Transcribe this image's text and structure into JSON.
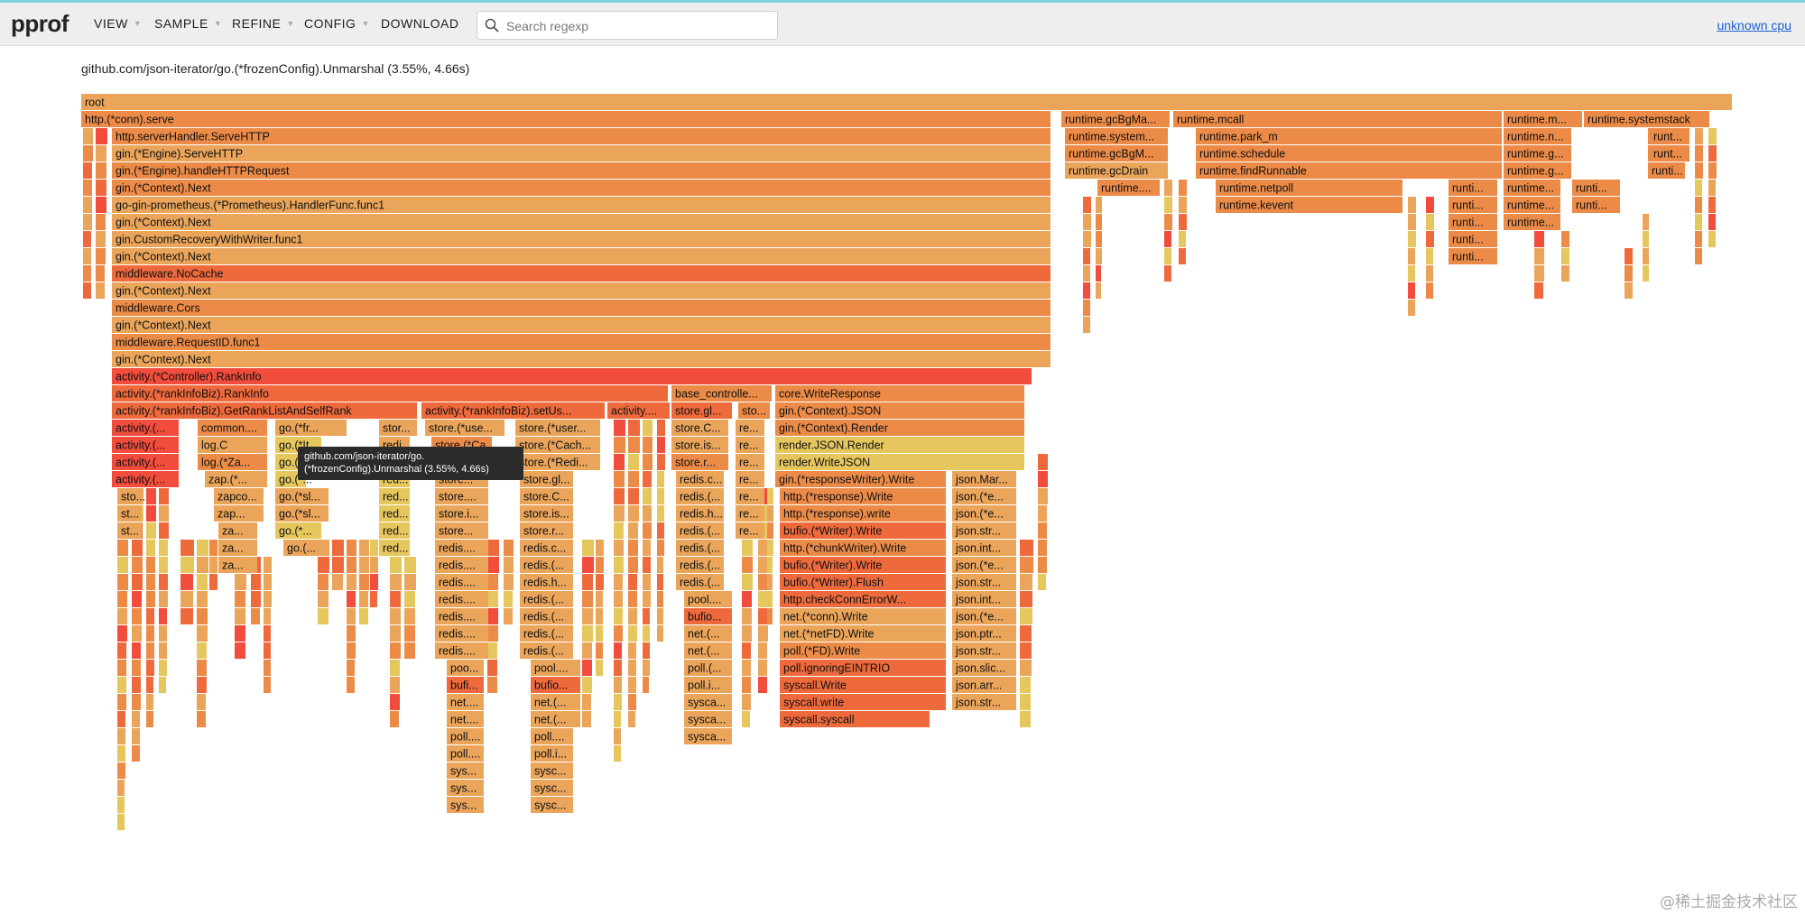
{
  "app": {
    "logo": "pprof"
  },
  "menu": [
    {
      "label": "VIEW",
      "caret": true
    },
    {
      "label": "SAMPLE",
      "caret": true
    },
    {
      "label": "REFINE",
      "caret": true
    },
    {
      "label": "CONFIG",
      "caret": true
    },
    {
      "label": "DOWNLOAD",
      "caret": false
    }
  ],
  "search": {
    "placeholder": "Search regexp",
    "value": ""
  },
  "profile_link": "unknown cpu",
  "selection_detail": "github.com/json-iterator/go.(*frozenConfig).Unmarshal (3.55%, 4.66s)",
  "tooltip": {
    "line1": "github.com/json-iterator/go.",
    "line2": "(*frozenConfig).Unmarshal (3.55%, 4.66s)"
  },
  "flame": {
    "frames": [
      [
        "root",
        0
      ],
      [
        "http.(*conn).serve",
        1
      ],
      [
        "runtime.gcBgMa...",
        1
      ],
      [
        "runtime.mcall",
        1
      ],
      [
        "runtime.m...",
        1
      ],
      [
        "runtime.systemstack",
        1
      ],
      [
        "http.serverHandler.ServeHTTP",
        2
      ],
      [
        "runtime.system...",
        2
      ],
      [
        "runtime.park_m",
        2
      ],
      [
        "runtime.n...",
        2
      ],
      [
        "runti...",
        2
      ],
      [
        "runt...",
        2
      ],
      [
        "gin.(*Engine).ServeHTTP",
        3
      ],
      [
        "runtime.gcBgM...",
        3
      ],
      [
        "runtime.schedule",
        3
      ],
      [
        "runtime.g...",
        3
      ],
      [
        "runti...",
        3
      ],
      [
        "runt...",
        3
      ],
      [
        "gin.(*Engine).handleHTTPRequest",
        4
      ],
      [
        "runtime.gcDrain",
        4
      ],
      [
        "runtime.findRunnable",
        4
      ],
      [
        "runtime.g...",
        4
      ],
      [
        "runti...",
        4
      ],
      [
        "gin.(*Context).Next",
        5
      ],
      [
        "runtime....",
        5
      ],
      [
        "runtime.netpoll",
        5
      ],
      [
        "runti...",
        5
      ],
      [
        "runtime...",
        5
      ],
      [
        "runti...",
        5
      ],
      [
        "go-gin-prometheus.(*Prometheus).HandlerFunc.func1",
        6
      ],
      [
        "runtime.kevent",
        6
      ],
      [
        "runti...",
        6
      ],
      [
        "runtime...",
        6
      ],
      [
        "runti...",
        6
      ],
      [
        "gin.(*Context).Next",
        7
      ],
      [
        "runti...",
        7
      ],
      [
        "runtime...",
        7
      ],
      [
        "gin.CustomRecoveryWithWriter.func1",
        8
      ],
      [
        "runti...",
        8
      ],
      [
        "gin.(*Context).Next",
        9
      ],
      [
        "runti...",
        9
      ],
      [
        "middleware.NoCache",
        10
      ],
      [
        "gin.(*Context).Next",
        11
      ],
      [
        "middleware.Cors",
        12
      ],
      [
        "gin.(*Context).Next",
        13
      ],
      [
        "middleware.RequestID.func1",
        14
      ],
      [
        "gin.(*Context).Next",
        15
      ],
      [
        "activity.(*Controller).RankInfo",
        16
      ],
      [
        "activity.(*rankInfoBiz).RankInfo",
        17
      ],
      [
        "base_controlle...",
        17
      ],
      [
        "core.WriteResponse",
        17
      ],
      [
        "activity.(*rankInfoBiz).GetRankListAndSelfRank",
        18
      ],
      [
        "activity.(*rankInfoBiz).setUs...",
        18
      ],
      [
        "activity....",
        18
      ],
      [
        "store.gl...",
        18
      ],
      [
        "sto...",
        18
      ],
      [
        "gin.(*Context).JSON",
        18
      ],
      [
        "activity.(...",
        19
      ],
      [
        "common....",
        19
      ],
      [
        "go.(*fr...",
        19
      ],
      [
        "stor...",
        19
      ],
      [
        "store.(*use...",
        19
      ],
      [
        "store.(*user...",
        19
      ],
      [
        "store.C...",
        19
      ],
      [
        "re...",
        19
      ],
      [
        "gin.(*Context).Render",
        19
      ],
      [
        "activity.(...",
        20
      ],
      [
        "log.C",
        20
      ],
      [
        "go.(*It...",
        20
      ],
      [
        "redi...",
        20
      ],
      [
        "store.(*Ca...",
        20
      ],
      [
        "store.(*Cach...",
        20
      ],
      [
        "store.is...",
        20
      ],
      [
        "re...",
        20
      ],
      [
        "render.JSON.Render",
        20
      ],
      [
        "activity.(...",
        21
      ],
      [
        "log.(*Za...",
        21
      ],
      [
        "go.(*...",
        21
      ],
      [
        "red...",
        21
      ],
      [
        "store.(*...",
        21
      ],
      [
        "store.(*Redi...",
        21
      ],
      [
        "store.r...",
        21
      ],
      [
        "re...",
        21
      ],
      [
        "render.WriteJSON",
        21
      ],
      [
        "activity.(...",
        22
      ],
      [
        "zap.(*...",
        22
      ],
      [
        "go.(*...",
        22
      ],
      [
        "red...",
        22
      ],
      [
        "store...",
        22
      ],
      [
        "store.gl...",
        22
      ],
      [
        "redis.c...",
        22
      ],
      [
        "re...",
        22
      ],
      [
        "gin.(*responseWriter).Write",
        22
      ],
      [
        "json.Mar...",
        22
      ],
      [
        "sto...",
        23
      ],
      [
        "zapco...",
        23
      ],
      [
        "go.(*sl...",
        23
      ],
      [
        "red...",
        23
      ],
      [
        "store....",
        23
      ],
      [
        "store.C...",
        23
      ],
      [
        "redis.(...",
        23
      ],
      [
        "re...",
        23
      ],
      [
        "http.(*response).Write",
        23
      ],
      [
        "json.(*e...",
        23
      ],
      [
        "st...",
        24
      ],
      [
        "zap...",
        24
      ],
      [
        "go.(*sl...",
        24
      ],
      [
        "red...",
        24
      ],
      [
        "store.i...",
        24
      ],
      [
        "store.is...",
        24
      ],
      [
        "redis.h...",
        24
      ],
      [
        "re...",
        24
      ],
      [
        "http.(*response).write",
        24
      ],
      [
        "json.(*e...",
        24
      ],
      [
        "st...",
        25
      ],
      [
        "za...",
        25
      ],
      [
        "go.(*...",
        25
      ],
      [
        "red...",
        25
      ],
      [
        "store...",
        25
      ],
      [
        "store.r...",
        25
      ],
      [
        "redis.(...",
        25
      ],
      [
        "re...",
        25
      ],
      [
        "bufio.(*Writer).Write",
        25
      ],
      [
        "json.str...",
        25
      ],
      [
        "za...",
        26
      ],
      [
        "go.(...",
        26
      ],
      [
        "red...",
        26
      ],
      [
        "redis....",
        26
      ],
      [
        "redis.c...",
        26
      ],
      [
        "redis.(...",
        26
      ],
      [
        "http.(*chunkWriter).Write",
        26
      ],
      [
        "json.int...",
        26
      ],
      [
        "za...",
        27
      ],
      [
        "redis....",
        27
      ],
      [
        "redis.(...",
        27
      ],
      [
        "redis.(...",
        27
      ],
      [
        "bufio.(*Writer).Write",
        27
      ],
      [
        "json.(*e...",
        27
      ],
      [
        "redis....",
        28
      ],
      [
        "redis.h...",
        28
      ],
      [
        "redis.(...",
        28
      ],
      [
        "bufio.(*Writer).Flush",
        28
      ],
      [
        "json.str...",
        28
      ],
      [
        "redis....",
        29
      ],
      [
        "redis.(...",
        29
      ],
      [
        "pool....",
        29
      ],
      [
        "http.checkConnErrorW...",
        29
      ],
      [
        "json.int...",
        29
      ],
      [
        "redis....",
        30
      ],
      [
        "redis.(...",
        30
      ],
      [
        "bufio...",
        30
      ],
      [
        "net.(*conn).Write",
        30
      ],
      [
        "json.(*e...",
        30
      ],
      [
        "redis....",
        31
      ],
      [
        "redis.(...",
        31
      ],
      [
        "net.(...",
        31
      ],
      [
        "net.(*netFD).Write",
        31
      ],
      [
        "json.ptr...",
        31
      ],
      [
        "redis....",
        32
      ],
      [
        "redis.(...",
        32
      ],
      [
        "net.(...",
        32
      ],
      [
        "poll.(*FD).Write",
        32
      ],
      [
        "json.str...",
        32
      ],
      [
        "poo...",
        33
      ],
      [
        "pool....",
        33
      ],
      [
        "poll.(...",
        33
      ],
      [
        "poll.ignoringEINTRIO",
        33
      ],
      [
        "json.slic...",
        33
      ],
      [
        "bufi...",
        34
      ],
      [
        "bufio...",
        34
      ],
      [
        "poll.i...",
        34
      ],
      [
        "syscall.Write",
        34
      ],
      [
        "json.arr...",
        34
      ],
      [
        "net....",
        35
      ],
      [
        "net.(...",
        35
      ],
      [
        "sysca...",
        35
      ],
      [
        "syscall.write",
        35
      ],
      [
        "json.str...",
        35
      ],
      [
        "net....",
        36
      ],
      [
        "net.(...",
        36
      ],
      [
        "sysca...",
        36
      ],
      [
        "syscall.syscall",
        36
      ],
      [
        "poll....",
        37
      ],
      [
        "poll....",
        37
      ],
      [
        "sysca...",
        37
      ],
      [
        "poll....",
        38
      ],
      [
        "poll.i...",
        38
      ],
      [
        "sys...",
        39
      ],
      [
        "sysc...",
        39
      ],
      [
        "sys...",
        40
      ],
      [
        "sysc...",
        40
      ],
      [
        "sys...",
        41
      ],
      [
        "sysc...",
        41
      ]
    ],
    "colors": {
      "yellow": "#e6c75e",
      "light": "#eaa55a",
      "orange": "#ec8b47",
      "deep": "#ee6a3c",
      "red": "#f24c3c"
    }
  }
}
